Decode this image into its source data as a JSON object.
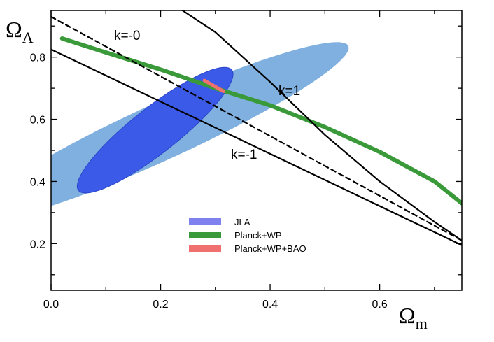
{
  "chart_data": {
    "type": "line",
    "xlabel": "Ω",
    "xlabel_sub": "m",
    "ylabel": "Ω",
    "ylabel_sub": "Λ",
    "xlim": [
      0.0,
      0.75
    ],
    "ylim": [
      0.05,
      0.95
    ],
    "x_ticks": [
      "0.0",
      "0.2",
      "0.4",
      "0.6"
    ],
    "y_ticks": [
      "0.2",
      "0.4",
      "0.6",
      "0.8"
    ],
    "grid": false,
    "legend_position": "lower-center",
    "contours": [
      {
        "name": "JLA",
        "level": "outer",
        "color": "#7fb0e0",
        "center": [
          0.2,
          0.56
        ],
        "semi_major_dir": [
          0.34,
          0.282
        ],
        "semi_minor_dir": [
          -0.05,
          0.06
        ]
      },
      {
        "name": "JLA",
        "level": "inner",
        "color": "#3b5ae8",
        "center": [
          0.19,
          0.565
        ],
        "semi_major_dir": [
          0.135,
          0.2
        ],
        "semi_minor_dir": [
          -0.045,
          0.03
        ]
      }
    ],
    "series": [
      {
        "name": "Planck+WP",
        "color": "#3a9a3a",
        "style": "band",
        "x": [
          0.02,
          0.1,
          0.2,
          0.3,
          0.4,
          0.5,
          0.6,
          0.7,
          0.75
        ],
        "y": [
          0.86,
          0.815,
          0.76,
          0.7,
          0.645,
          0.575,
          0.495,
          0.4,
          0.33
        ]
      },
      {
        "name": "Planck+WP+BAO",
        "color": "#f07070",
        "style": "band",
        "x": [
          0.28,
          0.3,
          0.315
        ],
        "y": [
          0.725,
          0.705,
          0.69
        ]
      },
      {
        "label": "k=-0",
        "color": "#000000",
        "style": "dashed",
        "x": [
          0.0,
          0.75
        ],
        "y": [
          0.93,
          0.21
        ]
      },
      {
        "label": "k=1",
        "color": "#000000",
        "style": "solid",
        "x": [
          0.24,
          0.3,
          0.4,
          0.5,
          0.6,
          0.7,
          0.75
        ],
        "y": [
          0.95,
          0.88,
          0.72,
          0.55,
          0.4,
          0.27,
          0.21
        ]
      },
      {
        "label": "k=-1",
        "color": "#000000",
        "style": "solid",
        "x": [
          0.0,
          0.75
        ],
        "y": [
          0.825,
          0.195
        ]
      }
    ],
    "annotations": [
      "k=-0",
      "k=1",
      "k=-1"
    ],
    "legend": [
      {
        "label": "JLA",
        "color": "#7f82ee"
      },
      {
        "label": "Planck+WP",
        "color": "#3a9a3a"
      },
      {
        "label": "Planck+WP+BAO",
        "color": "#f07070"
      }
    ]
  }
}
